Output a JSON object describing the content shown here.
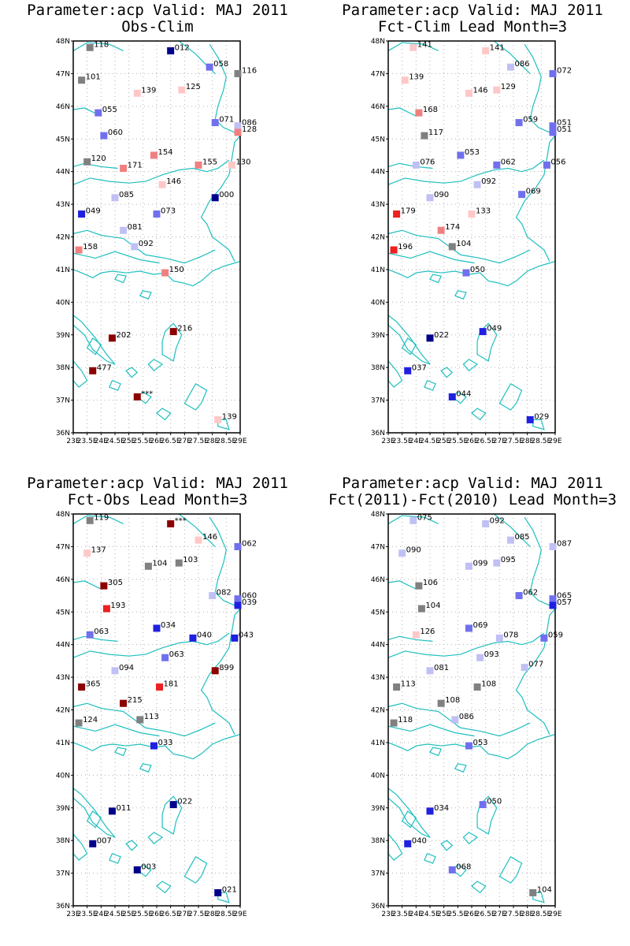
{
  "colors": {
    "coast": "#1fbfbf",
    "grid": "#b0b0b0",
    "frame": "#000000",
    "neutral": "#808080",
    "blue_dark": "#00008b",
    "blue": "#2020e0",
    "blue_mid": "#7070ee",
    "blue_light": "#c0c0f5",
    "pink_light": "#ffc8c8",
    "red_light": "#f08080",
    "red": "#ee2020",
    "red_dark": "#8b0000"
  },
  "lat_ticks": [
    "48N",
    "47N",
    "46N",
    "45N",
    "44N",
    "43N",
    "42N",
    "41N",
    "40N",
    "39N",
    "38N",
    "37N",
    "36N"
  ],
  "lon_ticks": [
    "23E",
    "23.5E",
    "24E",
    "24.5E",
    "25E",
    "25.5E",
    "26E",
    "26.5E",
    "27E",
    "27.5E",
    "28E",
    "28.5E",
    "29E"
  ],
  "panels": [
    {
      "title_line1": "Parameter:acp Valid: MAJ 2011",
      "title_line2": "Obs-Clim",
      "stations": [
        {
          "lon": 23.6,
          "lat": 47.8,
          "label": "118",
          "color": "neutral"
        },
        {
          "lon": 26.5,
          "lat": 47.7,
          "label": "012",
          "color": "blue_dark"
        },
        {
          "lon": 27.9,
          "lat": 47.2,
          "label": "058",
          "color": "blue_mid"
        },
        {
          "lon": 29.0,
          "lat": 47.0,
          "label": "116",
          "color": "neutral"
        },
        {
          "lon": 23.3,
          "lat": 46.8,
          "label": "101",
          "color": "neutral"
        },
        {
          "lon": 25.3,
          "lat": 46.4,
          "label": "139",
          "color": "pink_light"
        },
        {
          "lon": 26.9,
          "lat": 46.5,
          "label": "125",
          "color": "pink_light"
        },
        {
          "lon": 23.9,
          "lat": 45.8,
          "label": "055",
          "color": "blue_mid"
        },
        {
          "lon": 28.1,
          "lat": 45.5,
          "label": "071",
          "color": "blue_mid"
        },
        {
          "lon": 29.0,
          "lat": 45.4,
          "label": "086",
          "color": "blue_light"
        },
        {
          "lon": 29.0,
          "lat": 45.2,
          "label": "128",
          "color": "red_light"
        },
        {
          "lon": 24.1,
          "lat": 45.1,
          "label": "060",
          "color": "blue_mid"
        },
        {
          "lon": 25.9,
          "lat": 44.5,
          "label": "154",
          "color": "red_light"
        },
        {
          "lon": 23.5,
          "lat": 44.3,
          "label": "120",
          "color": "neutral"
        },
        {
          "lon": 24.8,
          "lat": 44.1,
          "label": "171",
          "color": "red_light"
        },
        {
          "lon": 27.5,
          "lat": 44.2,
          "label": "155",
          "color": "red_light"
        },
        {
          "lon": 28.7,
          "lat": 44.2,
          "label": "130",
          "color": "pink_light"
        },
        {
          "lon": 26.2,
          "lat": 43.6,
          "label": "146",
          "color": "pink_light"
        },
        {
          "lon": 28.1,
          "lat": 43.2,
          "label": "000",
          "color": "blue_dark"
        },
        {
          "lon": 24.5,
          "lat": 43.2,
          "label": "085",
          "color": "blue_light"
        },
        {
          "lon": 23.3,
          "lat": 42.7,
          "label": "049",
          "color": "blue"
        },
        {
          "lon": 26.0,
          "lat": 42.7,
          "label": "073",
          "color": "blue_mid"
        },
        {
          "lon": 24.8,
          "lat": 42.2,
          "label": "081",
          "color": "blue_light"
        },
        {
          "lon": 25.2,
          "lat": 41.7,
          "label": "092",
          "color": "blue_light"
        },
        {
          "lon": 23.2,
          "lat": 41.6,
          "label": "158",
          "color": "red_light"
        },
        {
          "lon": 26.3,
          "lat": 40.9,
          "label": "150",
          "color": "red_light"
        },
        {
          "lon": 24.4,
          "lat": 38.9,
          "label": "202",
          "color": "red_dark"
        },
        {
          "lon": 26.6,
          "lat": 39.1,
          "label": "216",
          "color": "red_dark"
        },
        {
          "lon": 23.7,
          "lat": 37.9,
          "label": "477",
          "color": "red_dark"
        },
        {
          "lon": 25.3,
          "lat": 37.1,
          "label": "***",
          "color": "red_dark"
        },
        {
          "lon": 28.2,
          "lat": 36.4,
          "label": "139",
          "color": "pink_light"
        }
      ]
    },
    {
      "title_line1": "Parameter:acp Valid: MAJ 2011",
      "title_line2": "Fct-Clim Lead Month=3",
      "stations": [
        {
          "lon": 23.9,
          "lat": 47.8,
          "label": "141",
          "color": "pink_light"
        },
        {
          "lon": 26.5,
          "lat": 47.7,
          "label": "141",
          "color": "pink_light"
        },
        {
          "lon": 27.4,
          "lat": 47.2,
          "label": "086",
          "color": "blue_light"
        },
        {
          "lon": 29.0,
          "lat": 47.0,
          "label": "072",
          "color": "blue_mid"
        },
        {
          "lon": 23.6,
          "lat": 46.8,
          "label": "139",
          "color": "pink_light"
        },
        {
          "lon": 25.9,
          "lat": 46.4,
          "label": "146",
          "color": "pink_light"
        },
        {
          "lon": 26.9,
          "lat": 46.5,
          "label": "129",
          "color": "pink_light"
        },
        {
          "lon": 24.1,
          "lat": 45.8,
          "label": "168",
          "color": "red_light"
        },
        {
          "lon": 27.7,
          "lat": 45.5,
          "label": "059",
          "color": "blue_mid"
        },
        {
          "lon": 29.0,
          "lat": 45.4,
          "label": "051",
          "color": "blue_mid"
        },
        {
          "lon": 29.0,
          "lat": 45.2,
          "label": "051",
          "color": "blue_mid"
        },
        {
          "lon": 24.3,
          "lat": 45.1,
          "label": "117",
          "color": "neutral"
        },
        {
          "lon": 25.6,
          "lat": 44.5,
          "label": "053",
          "color": "blue_mid"
        },
        {
          "lon": 24.0,
          "lat": 44.2,
          "label": "076",
          "color": "blue_light"
        },
        {
          "lon": 26.9,
          "lat": 44.2,
          "label": "062",
          "color": "blue_mid"
        },
        {
          "lon": 28.7,
          "lat": 44.2,
          "label": "056",
          "color": "blue_mid"
        },
        {
          "lon": 26.2,
          "lat": 43.6,
          "label": "092",
          "color": "blue_light"
        },
        {
          "lon": 27.8,
          "lat": 43.3,
          "label": "069",
          "color": "blue_mid"
        },
        {
          "lon": 24.5,
          "lat": 43.2,
          "label": "090",
          "color": "blue_light"
        },
        {
          "lon": 23.3,
          "lat": 42.7,
          "label": "179",
          "color": "red"
        },
        {
          "lon": 26.0,
          "lat": 42.7,
          "label": "133",
          "color": "pink_light"
        },
        {
          "lon": 24.9,
          "lat": 42.2,
          "label": "174",
          "color": "red_light"
        },
        {
          "lon": 25.3,
          "lat": 41.7,
          "label": "104",
          "color": "neutral"
        },
        {
          "lon": 23.2,
          "lat": 41.6,
          "label": "196",
          "color": "red"
        },
        {
          "lon": 25.8,
          "lat": 40.9,
          "label": "050",
          "color": "blue_mid"
        },
        {
          "lon": 24.5,
          "lat": 38.9,
          "label": "022",
          "color": "blue_dark"
        },
        {
          "lon": 26.4,
          "lat": 39.1,
          "label": "049",
          "color": "blue"
        },
        {
          "lon": 23.7,
          "lat": 37.9,
          "label": "037",
          "color": "blue"
        },
        {
          "lon": 25.3,
          "lat": 37.1,
          "label": "044",
          "color": "blue"
        },
        {
          "lon": 28.1,
          "lat": 36.4,
          "label": "029",
          "color": "blue"
        }
      ]
    },
    {
      "title_line1": "Parameter:acp Valid: MAJ 2011",
      "title_line2": "Fct-Obs Lead Month=3",
      "stations": [
        {
          "lon": 23.6,
          "lat": 47.8,
          "label": "119",
          "color": "neutral"
        },
        {
          "lon": 26.5,
          "lat": 47.7,
          "label": "***",
          "color": "red_dark"
        },
        {
          "lon": 27.5,
          "lat": 47.2,
          "label": "146",
          "color": "pink_light"
        },
        {
          "lon": 29.0,
          "lat": 47.0,
          "label": "062",
          "color": "blue_mid"
        },
        {
          "lon": 23.5,
          "lat": 46.8,
          "label": "137",
          "color": "pink_light"
        },
        {
          "lon": 25.7,
          "lat": 46.4,
          "label": "104",
          "color": "neutral"
        },
        {
          "lon": 26.8,
          "lat": 46.5,
          "label": "103",
          "color": "neutral"
        },
        {
          "lon": 24.1,
          "lat": 45.8,
          "label": "305",
          "color": "red_dark"
        },
        {
          "lon": 28.0,
          "lat": 45.5,
          "label": "082",
          "color": "blue_light"
        },
        {
          "lon": 29.0,
          "lat": 45.4,
          "label": "060",
          "color": "blue_mid"
        },
        {
          "lon": 29.0,
          "lat": 45.2,
          "label": "039",
          "color": "blue"
        },
        {
          "lon": 24.2,
          "lat": 45.1,
          "label": "193",
          "color": "red"
        },
        {
          "lon": 26.0,
          "lat": 44.5,
          "label": "034",
          "color": "blue"
        },
        {
          "lon": 23.6,
          "lat": 44.3,
          "label": "063",
          "color": "blue_mid"
        },
        {
          "lon": 27.3,
          "lat": 44.2,
          "label": "040",
          "color": "blue"
        },
        {
          "lon": 28.8,
          "lat": 44.2,
          "label": "043",
          "color": "blue"
        },
        {
          "lon": 26.3,
          "lat": 43.6,
          "label": "063",
          "color": "blue_mid"
        },
        {
          "lon": 28.1,
          "lat": 43.2,
          "label": "899",
          "color": "red_dark"
        },
        {
          "lon": 24.5,
          "lat": 43.2,
          "label": "094",
          "color": "blue_light"
        },
        {
          "lon": 23.3,
          "lat": 42.7,
          "label": "365",
          "color": "red_dark"
        },
        {
          "lon": 26.1,
          "lat": 42.7,
          "label": "181",
          "color": "red"
        },
        {
          "lon": 24.8,
          "lat": 42.2,
          "label": "215",
          "color": "red_dark"
        },
        {
          "lon": 25.4,
          "lat": 41.7,
          "label": "113",
          "color": "neutral"
        },
        {
          "lon": 23.2,
          "lat": 41.6,
          "label": "124",
          "color": "neutral"
        },
        {
          "lon": 25.9,
          "lat": 40.9,
          "label": "033",
          "color": "blue"
        },
        {
          "lon": 24.4,
          "lat": 38.9,
          "label": "011",
          "color": "blue_dark"
        },
        {
          "lon": 26.6,
          "lat": 39.1,
          "label": "022",
          "color": "blue_dark"
        },
        {
          "lon": 23.7,
          "lat": 37.9,
          "label": "007",
          "color": "blue_dark"
        },
        {
          "lon": 25.3,
          "lat": 37.1,
          "label": "003",
          "color": "blue_dark"
        },
        {
          "lon": 28.2,
          "lat": 36.4,
          "label": "021",
          "color": "blue_dark"
        }
      ]
    },
    {
      "title_line1": "Parameter:acp Valid: MAJ 2011",
      "title_line2": "Fct(2011)-Fct(2010) Lead Month=3",
      "stations": [
        {
          "lon": 23.9,
          "lat": 47.8,
          "label": "075",
          "color": "blue_light"
        },
        {
          "lon": 26.5,
          "lat": 47.7,
          "label": "092",
          "color": "blue_light"
        },
        {
          "lon": 27.4,
          "lat": 47.2,
          "label": "085",
          "color": "blue_light"
        },
        {
          "lon": 29.0,
          "lat": 47.0,
          "label": "087",
          "color": "blue_light"
        },
        {
          "lon": 23.5,
          "lat": 46.8,
          "label": "090",
          "color": "blue_light"
        },
        {
          "lon": 25.9,
          "lat": 46.4,
          "label": "099",
          "color": "blue_light"
        },
        {
          "lon": 26.9,
          "lat": 46.5,
          "label": "095",
          "color": "blue_light"
        },
        {
          "lon": 24.1,
          "lat": 45.8,
          "label": "106",
          "color": "neutral"
        },
        {
          "lon": 27.7,
          "lat": 45.5,
          "label": "062",
          "color": "blue_mid"
        },
        {
          "lon": 29.0,
          "lat": 45.4,
          "label": "065",
          "color": "blue_mid"
        },
        {
          "lon": 29.0,
          "lat": 45.2,
          "label": "057",
          "color": "blue"
        },
        {
          "lon": 24.2,
          "lat": 45.1,
          "label": "104",
          "color": "neutral"
        },
        {
          "lon": 25.9,
          "lat": 44.5,
          "label": "069",
          "color": "blue_mid"
        },
        {
          "lon": 24.0,
          "lat": 44.3,
          "label": "126",
          "color": "pink_light"
        },
        {
          "lon": 27.0,
          "lat": 44.2,
          "label": "078",
          "color": "blue_light"
        },
        {
          "lon": 28.6,
          "lat": 44.2,
          "label": "059",
          "color": "blue_mid"
        },
        {
          "lon": 26.3,
          "lat": 43.6,
          "label": "093",
          "color": "blue_light"
        },
        {
          "lon": 27.9,
          "lat": 43.3,
          "label": "077",
          "color": "blue_light"
        },
        {
          "lon": 24.5,
          "lat": 43.2,
          "label": "081",
          "color": "blue_light"
        },
        {
          "lon": 23.3,
          "lat": 42.7,
          "label": "113",
          "color": "neutral"
        },
        {
          "lon": 26.2,
          "lat": 42.7,
          "label": "108",
          "color": "neutral"
        },
        {
          "lon": 24.9,
          "lat": 42.2,
          "label": "108",
          "color": "neutral"
        },
        {
          "lon": 25.4,
          "lat": 41.7,
          "label": "086",
          "color": "blue_light"
        },
        {
          "lon": 23.2,
          "lat": 41.6,
          "label": "118",
          "color": "neutral"
        },
        {
          "lon": 25.9,
          "lat": 40.9,
          "label": "053",
          "color": "blue_mid"
        },
        {
          "lon": 24.5,
          "lat": 38.9,
          "label": "034",
          "color": "blue"
        },
        {
          "lon": 26.4,
          "lat": 39.1,
          "label": "050",
          "color": "blue_mid"
        },
        {
          "lon": 23.7,
          "lat": 37.9,
          "label": "040",
          "color": "blue"
        },
        {
          "lon": 25.3,
          "lat": 37.1,
          "label": "068",
          "color": "blue_mid"
        },
        {
          "lon": 28.2,
          "lat": 36.4,
          "label": "104",
          "color": "neutral"
        }
      ]
    }
  ]
}
